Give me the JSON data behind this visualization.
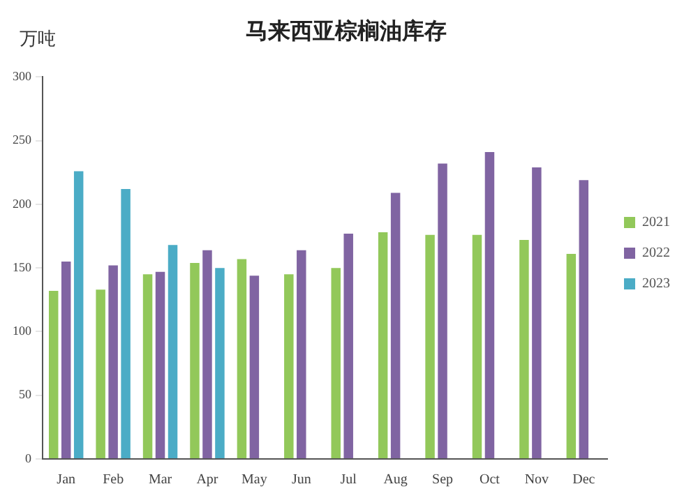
{
  "chart_data": {
    "type": "bar",
    "title": "马来西亚棕榈油库存",
    "ylabel": "万吨",
    "categories": [
      "Jan",
      "Feb",
      "Mar",
      "Apr",
      "May",
      "Jun",
      "Jul",
      "Aug",
      "Sep",
      "Oct",
      "Nov",
      "Dec"
    ],
    "series": [
      {
        "name": "2021",
        "color": "#92c85a",
        "values": [
          132,
          133,
          145,
          154,
          157,
          145,
          150,
          178,
          176,
          176,
          172,
          161
        ]
      },
      {
        "name": "2022",
        "color": "#8064a2",
        "values": [
          155,
          152,
          147,
          164,
          144,
          164,
          177,
          209,
          232,
          241,
          229,
          219
        ]
      },
      {
        "name": "2023",
        "color": "#4bacc6",
        "values": [
          226,
          212,
          168,
          150,
          null,
          null,
          null,
          null,
          null,
          null,
          null,
          null
        ]
      }
    ],
    "ylim": [
      0,
      300
    ],
    "yticks": [
      0,
      50,
      100,
      150,
      200,
      250,
      300
    ],
    "grid": false,
    "legend": "right"
  }
}
